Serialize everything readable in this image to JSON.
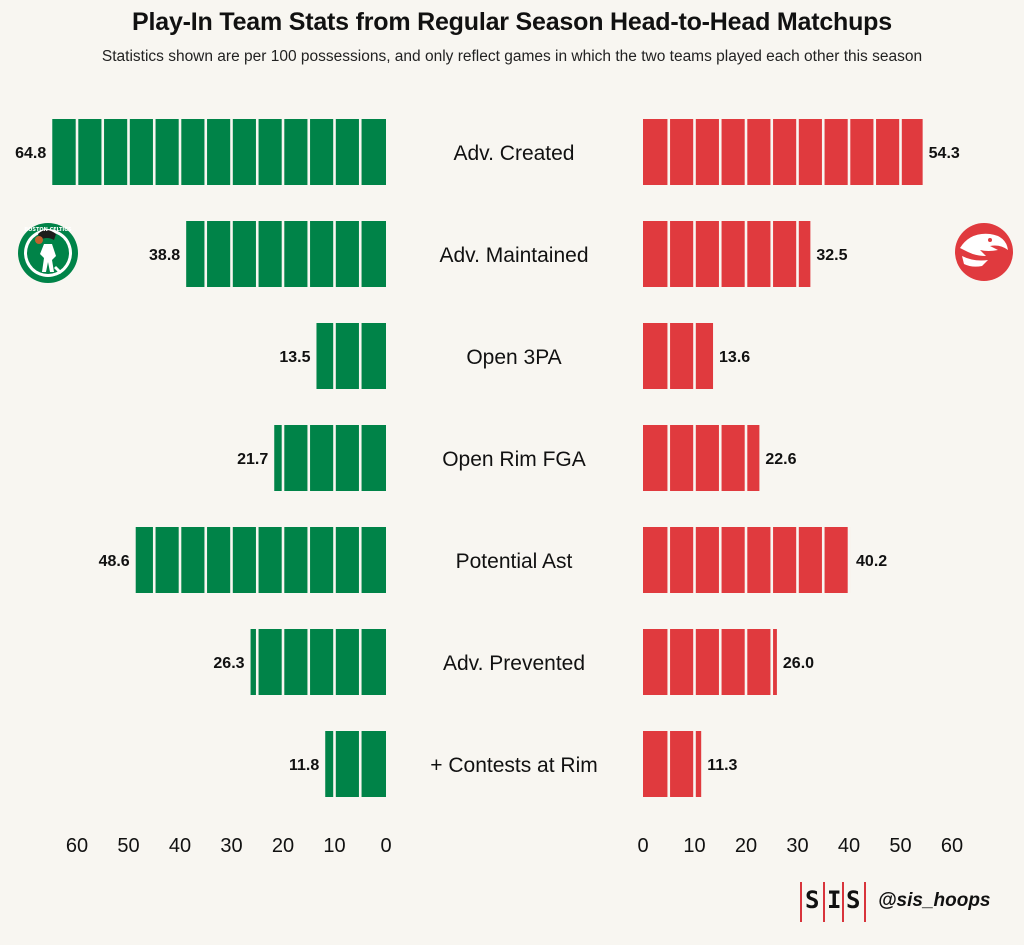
{
  "header": {
    "title": "Play-In Team Stats from Regular Season Head-to-Head Matchups",
    "subtitle": "Statistics shown are per 100 possessions, and only reflect games in which the two teams played each other this season"
  },
  "colors": {
    "left_team": "#008348",
    "right_team": "#e03a3e",
    "background": "#f8f6f1"
  },
  "logos": {
    "left": {
      "name": "boston-celtics-logo",
      "text": "BOSTON CELTICS"
    },
    "right": {
      "name": "atlanta-hawks-logo"
    }
  },
  "chart_data": {
    "type": "bar",
    "orientation": "horizontal-diverging",
    "categories": [
      "Adv. Created",
      "Adv. Maintained",
      "Open 3PA",
      "Open Rim FGA",
      "Potential Ast",
      "Adv. Prevented",
      "+ Contests at Rim"
    ],
    "series": [
      {
        "values": [
          64.8,
          38.8,
          13.5,
          21.7,
          48.6,
          26.3,
          11.8
        ]
      },
      {
        "values": [
          54.3,
          32.5,
          13.6,
          22.6,
          40.2,
          26.0,
          11.3
        ]
      }
    ],
    "xlim": [
      0,
      60
    ],
    "ticks": [
      0,
      10,
      20,
      30,
      40,
      50,
      60
    ],
    "tick_labels": [
      "0",
      "10",
      "20",
      "30",
      "40",
      "50",
      "60"
    ],
    "bar_segment_size": 5,
    "grid": false,
    "legend": "team logos at left and right"
  },
  "footer": {
    "brand_letters": [
      "S",
      "I",
      "S"
    ],
    "handle": "@sis_hoops"
  }
}
